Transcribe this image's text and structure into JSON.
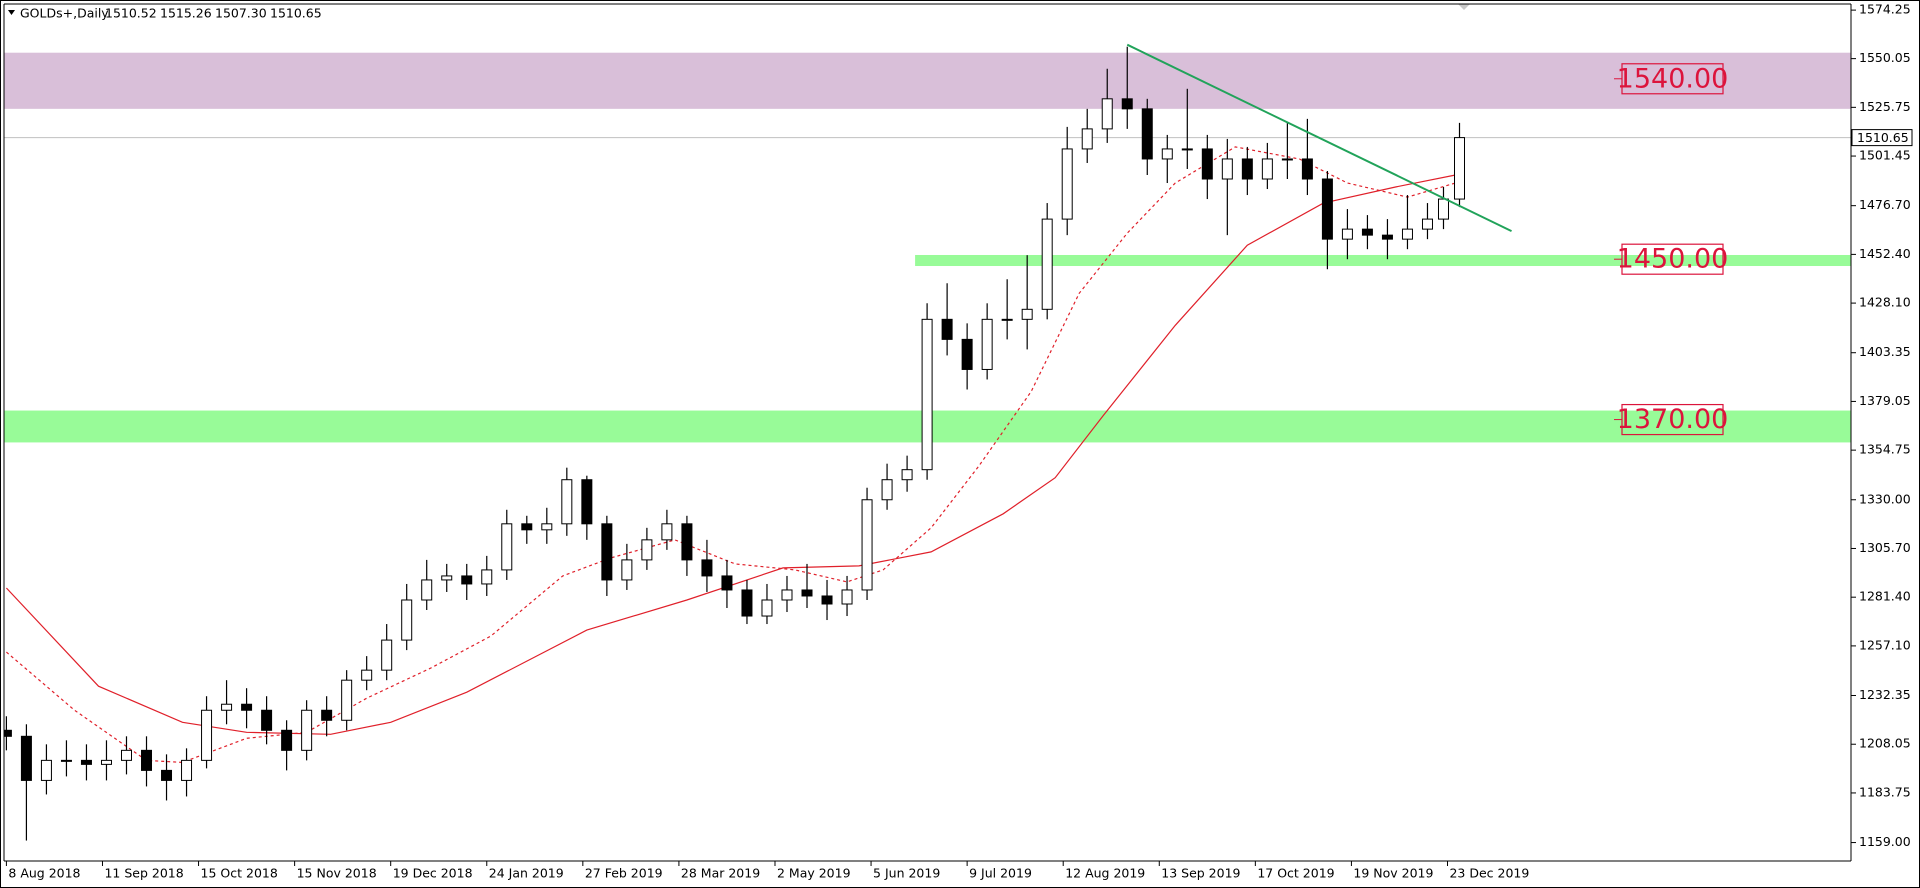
{
  "chart_data": {
    "type": "candlestick",
    "header": {
      "symbol": "GOLDs+,Daily",
      "ohlc": [
        "1510.52",
        "1515.26",
        "1507.30",
        "1510.65"
      ]
    },
    "x": [
      0,
      5,
      10,
      15,
      20,
      25,
      30,
      35,
      40,
      45,
      50,
      55,
      60,
      65,
      70,
      75,
      80,
      85,
      90,
      95,
      100,
      105,
      110,
      115,
      120,
      125,
      130,
      135,
      140,
      145,
      150,
      155,
      160,
      165,
      170,
      175,
      180,
      185,
      190,
      195,
      200,
      205,
      210,
      215,
      220,
      225,
      230,
      235,
      240,
      245,
      250,
      255,
      260,
      265,
      270,
      275,
      280,
      285,
      290,
      295,
      300,
      305,
      310,
      315,
      320,
      325,
      330,
      335,
      340,
      345,
      350,
      355,
      359,
      363
    ],
    "open": [
      1215,
      1212,
      1190,
      1200,
      1200,
      1198,
      1200,
      1205,
      1195,
      1190,
      1200,
      1225,
      1228,
      1225,
      1215,
      1205,
      1225,
      1220,
      1240,
      1245,
      1260,
      1280,
      1290,
      1292,
      1288,
      1295,
      1318,
      1315,
      1318,
      1340,
      1318,
      1290,
      1300,
      1310,
      1318,
      1300,
      1292,
      1285,
      1272,
      1280,
      1285,
      1282,
      1278,
      1285,
      1330,
      1340,
      1345,
      1420,
      1410,
      1395,
      1420,
      1420,
      1425,
      1470,
      1505,
      1515,
      1530,
      1525,
      1500,
      1505,
      1505,
      1490,
      1500,
      1490,
      1500,
      1500,
      1490,
      1460,
      1465,
      1462,
      1460,
      1465,
      1470,
      1480
    ],
    "high": [
      1222,
      1218,
      1208,
      1210,
      1208,
      1210,
      1212,
      1212,
      1203,
      1206,
      1232,
      1240,
      1236,
      1232,
      1220,
      1230,
      1232,
      1245,
      1252,
      1268,
      1288,
      1300,
      1298,
      1298,
      1302,
      1325,
      1322,
      1326,
      1346,
      1342,
      1322,
      1308,
      1316,
      1325,
      1322,
      1310,
      1300,
      1290,
      1288,
      1292,
      1298,
      1290,
      1292,
      1336,
      1348,
      1352,
      1428,
      1438,
      1418,
      1428,
      1440,
      1452,
      1478,
      1516,
      1525,
      1545,
      1556,
      1530,
      1512,
      1535,
      1512,
      1510,
      1506,
      1508,
      1518,
      1520,
      1494,
      1475,
      1472,
      1470,
      1482,
      1478,
      1486,
      1518
    ],
    "low": [
      1205,
      1160,
      1183,
      1192,
      1190,
      1190,
      1193,
      1187,
      1180,
      1182,
      1196,
      1218,
      1216,
      1208,
      1195,
      1200,
      1212,
      1215,
      1235,
      1240,
      1255,
      1275,
      1284,
      1280,
      1282,
      1290,
      1308,
      1308,
      1312,
      1310,
      1282,
      1285,
      1295,
      1305,
      1292,
      1284,
      1276,
      1268,
      1268,
      1274,
      1276,
      1270,
      1272,
      1280,
      1325,
      1334,
      1340,
      1402,
      1385,
      1390,
      1410,
      1405,
      1420,
      1462,
      1498,
      1508,
      1515,
      1492,
      1488,
      1495,
      1480,
      1462,
      1482,
      1485,
      1490,
      1482,
      1445,
      1450,
      1455,
      1450,
      1455,
      1460,
      1465,
      1476
    ],
    "close": [
      1212,
      1190,
      1200,
      1200,
      1198,
      1200,
      1205,
      1195,
      1190,
      1200,
      1225,
      1228,
      1225,
      1215,
      1205,
      1225,
      1220,
      1240,
      1245,
      1260,
      1280,
      1290,
      1292,
      1288,
      1295,
      1318,
      1315,
      1318,
      1340,
      1318,
      1290,
      1300,
      1310,
      1318,
      1300,
      1292,
      1285,
      1272,
      1280,
      1285,
      1282,
      1278,
      1285,
      1330,
      1340,
      1345,
      1420,
      1410,
      1395,
      1420,
      1420,
      1425,
      1470,
      1505,
      1515,
      1530,
      1525,
      1500,
      1505,
      1505,
      1490,
      1500,
      1490,
      1500,
      1500,
      1490,
      1460,
      1465,
      1462,
      1460,
      1465,
      1470,
      1480,
      1510.65
    ],
    "xlim": [
      -0.6,
      460.8
    ],
    "xticks": [
      {
        "value": 0,
        "label": "8 Aug 2018"
      },
      {
        "value": 24,
        "label": "11 Sep 2018"
      },
      {
        "value": 48,
        "label": "15 Oct 2018"
      },
      {
        "value": 72,
        "label": "15 Nov 2018"
      },
      {
        "value": 96,
        "label": "19 Dec 2018"
      },
      {
        "value": 120,
        "label": "24 Jan 2019"
      },
      {
        "value": 144,
        "label": "27 Feb 2019"
      },
      {
        "value": 168,
        "label": "28 Mar 2019"
      },
      {
        "value": 192,
        "label": "2 May 2019"
      },
      {
        "value": 216,
        "label": "5 Jun 2019"
      },
      {
        "value": 240,
        "label": "9 Jul 2019"
      },
      {
        "value": 264,
        "label": "12 Aug 2019"
      },
      {
        "value": 288,
        "label": "13 Sep 2019"
      },
      {
        "value": 312,
        "label": "17 Oct 2019"
      },
      {
        "value": 336,
        "label": "19 Nov 2019"
      },
      {
        "value": 360,
        "label": "23 Dec 2019"
      }
    ],
    "ylim": [
      1149.8,
      1577.3
    ],
    "yticks": [
      {
        "value": 1574.25,
        "label": "1574.25"
      },
      {
        "value": 1550.05,
        "label": "1550.05"
      },
      {
        "value": 1525.75,
        "label": "1525.75"
      },
      {
        "value": 1501.45,
        "label": "1501.45"
      },
      {
        "value": 1476.7,
        "label": "1476.70"
      },
      {
        "value": 1452.4,
        "label": "1452.40"
      },
      {
        "value": 1428.1,
        "label": "1428.10"
      },
      {
        "value": 1403.35,
        "label": "1403.35"
      },
      {
        "value": 1379.05,
        "label": "1379.05"
      },
      {
        "value": 1354.75,
        "label": "1354.75"
      },
      {
        "value": 1330,
        "label": "1330.00"
      },
      {
        "value": 1305.7,
        "label": "1305.70"
      },
      {
        "value": 1281.4,
        "label": "1281.40"
      },
      {
        "value": 1257.1,
        "label": "1257.10"
      },
      {
        "value": 1232.35,
        "label": "1232.35"
      },
      {
        "value": 1208.05,
        "label": "1208.05"
      },
      {
        "value": 1183.75,
        "label": "1183.75"
      },
      {
        "value": 1159,
        "label": "1159.00"
      }
    ],
    "lines": [
      {
        "color": "#e0202a",
        "dash": false,
        "x": [
          0,
          23,
          44,
          60,
          81,
          96,
          115,
          145,
          170,
          194,
          213,
          231,
          249,
          262,
          274,
          292,
          310,
          329,
          347,
          362
        ],
        "values": [
          1286,
          1237,
          1219,
          1214,
          1213,
          1219,
          1234,
          1265,
          1280,
          1296,
          1297,
          1304,
          1323,
          1341,
          1372,
          1417,
          1457,
          1478,
          1486,
          1492
        ]
      },
      {
        "color": "#e0202a",
        "dash": true,
        "x": [
          0,
          17,
          35,
          44,
          60,
          75,
          90,
          106,
          121,
          139,
          151,
          167,
          182,
          197,
          210,
          219,
          231,
          243,
          256,
          268,
          280,
          292,
          307,
          323,
          335,
          350,
          362
        ],
        "values": [
          1254,
          1225,
          1200,
          1199,
          1211,
          1214,
          1231,
          1246,
          1262,
          1292,
          1301,
          1310,
          1298,
          1295,
          1289,
          1295,
          1316,
          1347,
          1384,
          1433,
          1463,
          1488,
          1506,
          1500,
          1488,
          1481,
          1488
        ]
      }
    ],
    "trendline": {
      "color": "#21a35a",
      "x": [
        280,
        376
      ],
      "values": [
        1557,
        1464
      ]
    },
    "zones": [
      {
        "from": 1525,
        "to": 1553,
        "color": "#d9bfd9",
        "label": {
          "value": 1540,
          "label": "1540.00"
        }
      },
      {
        "from": 1446.6,
        "to": 1452.1,
        "x_start": 227,
        "color": "#98fb98",
        "label": {
          "value": 1450,
          "label": "1450.00"
        }
      },
      {
        "from": 1358.6,
        "to": 1374.5,
        "color": "#98fb98",
        "label": {
          "value": 1370,
          "label": "1370.00"
        }
      }
    ],
    "zone_label_color": "#dc143c",
    "last": {
      "value": 1510.65,
      "label": "1510.65"
    }
  }
}
